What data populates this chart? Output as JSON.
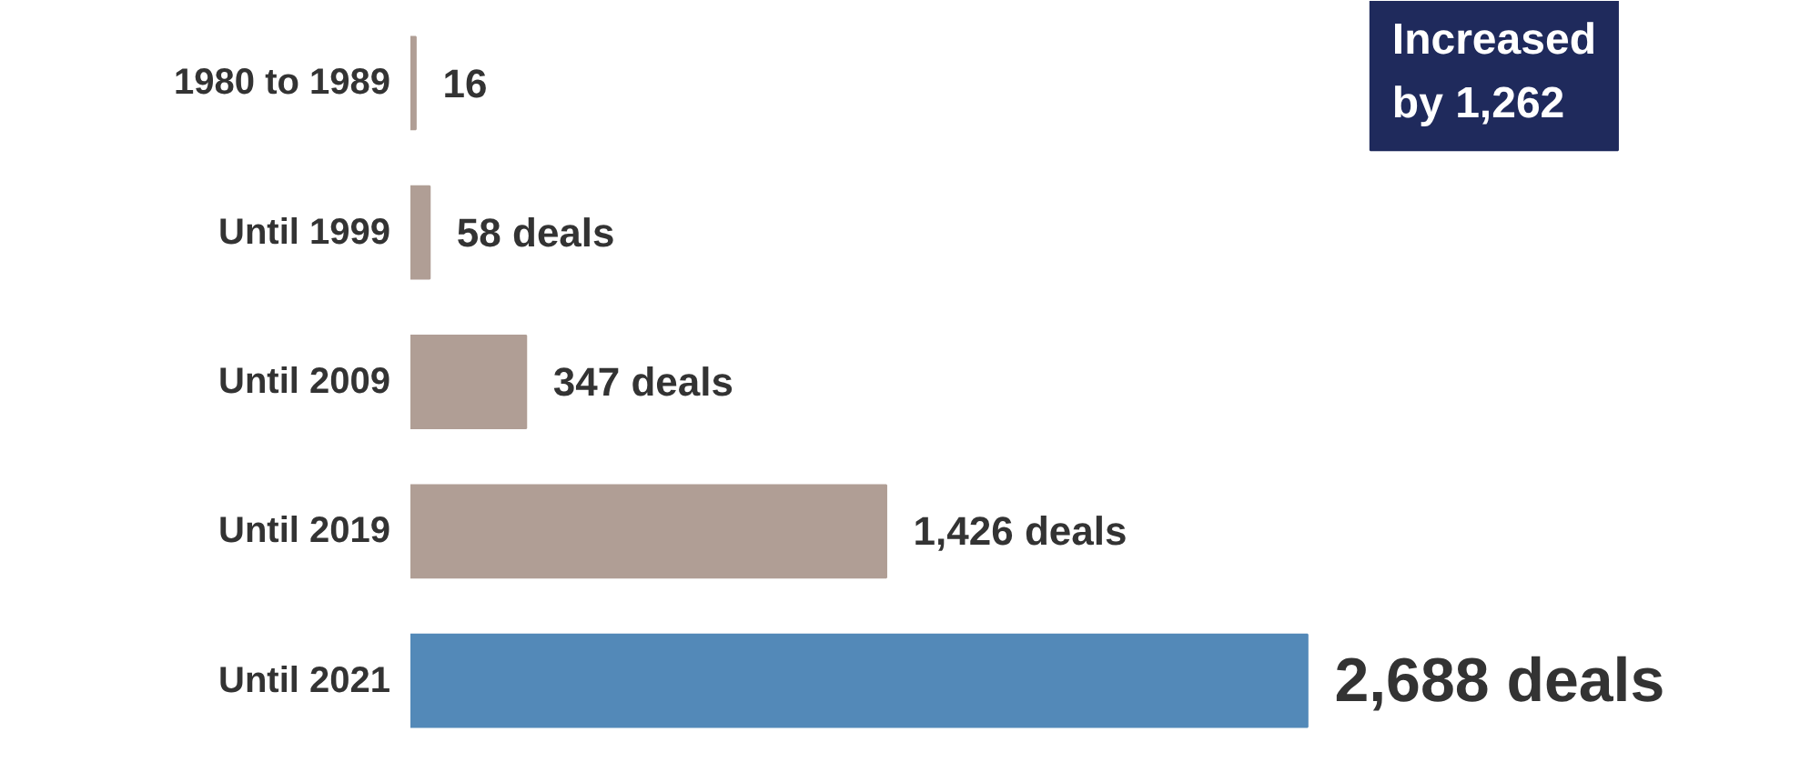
{
  "chart_data": {
    "type": "bar",
    "orientation": "horizontal",
    "categories": [
      "1980 to 1989",
      "Until 1999",
      "Until 2009",
      "Until 2019",
      "Until 2021"
    ],
    "values": [
      16,
      58,
      347,
      1426,
      2688
    ],
    "value_labels": [
      "16",
      "58 deals",
      "347 deals",
      "1,426 deals",
      "2,688 deals"
    ],
    "colors": [
      "#b09e95",
      "#b09e95",
      "#b09e95",
      "#b09e95",
      "#5389b8"
    ],
    "annotations": [
      "Increased\nby 1,262"
    ],
    "grid": false
  }
}
